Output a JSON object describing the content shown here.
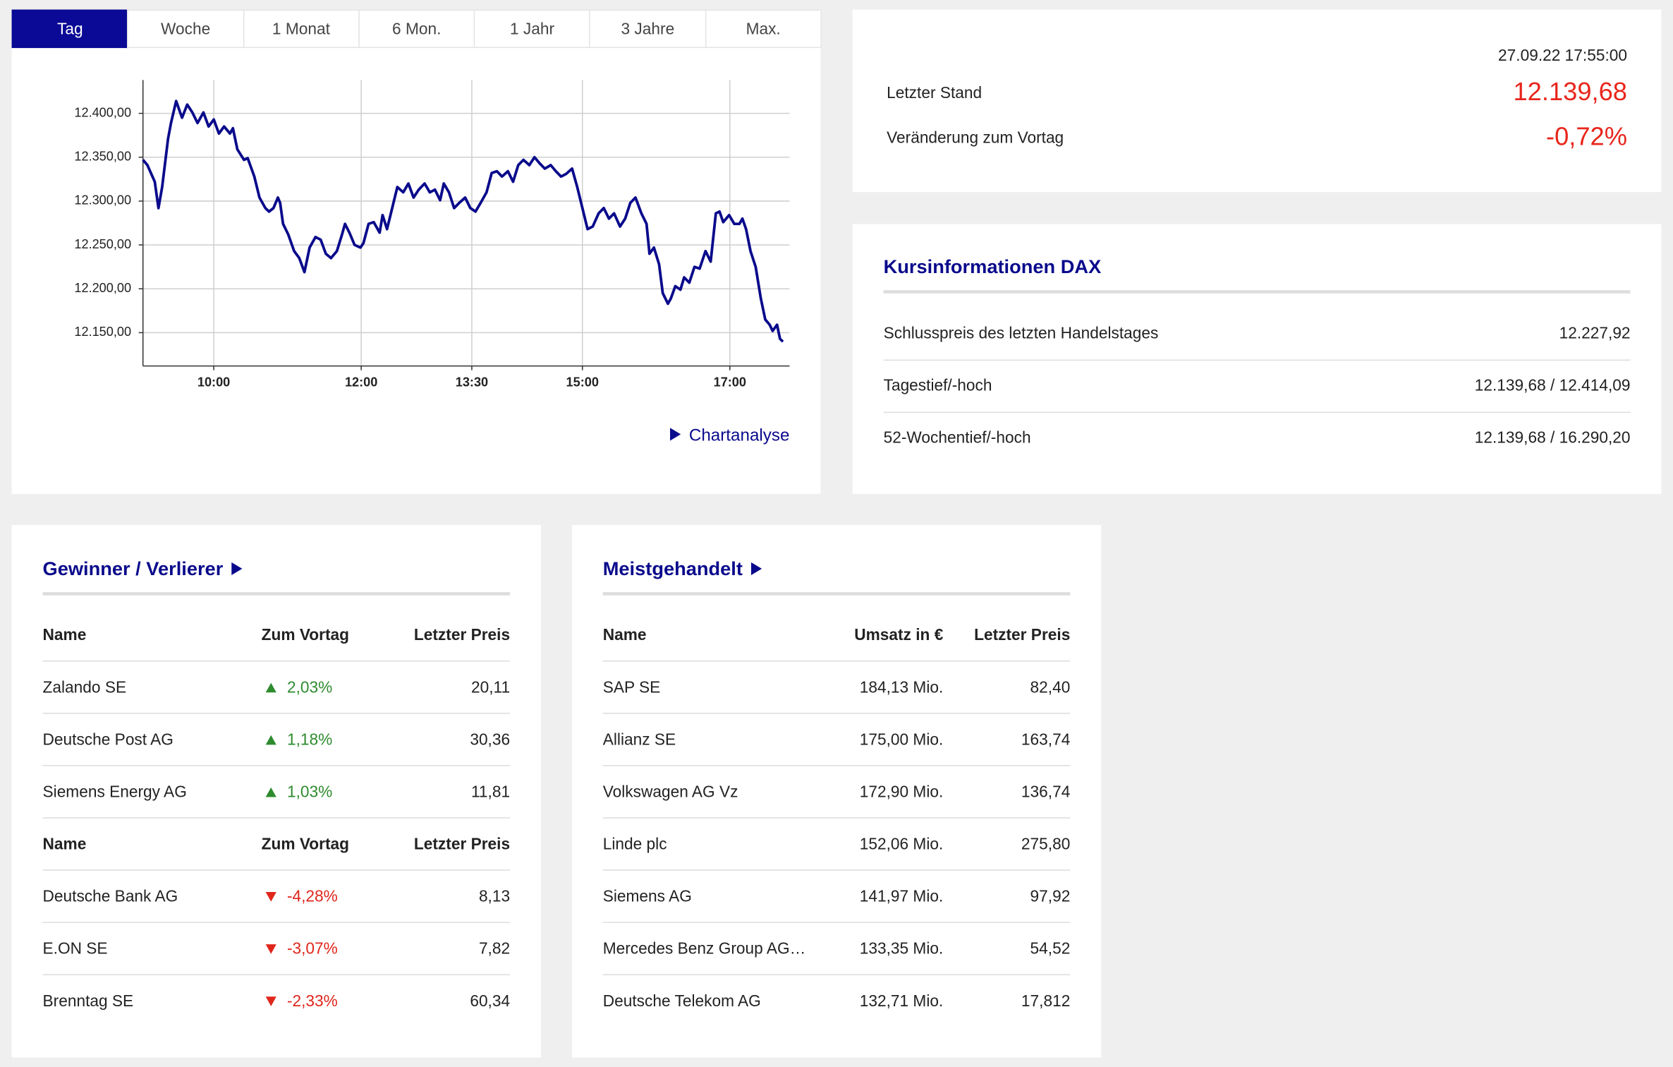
{
  "tabs": [
    "Tag",
    "Woche",
    "1 Monat",
    "6 Mon.",
    "1 Jahr",
    "3 Jahre",
    "Max."
  ],
  "chart_data": {
    "type": "line",
    "color": "#0a0a8c",
    "grid": true,
    "x": [
      9.04,
      9.1,
      9.2,
      9.25,
      9.3,
      9.38,
      9.42,
      9.49,
      9.57,
      9.64,
      9.71,
      9.78,
      9.86,
      9.93,
      10.0,
      10.07,
      10.14,
      10.22,
      10.26,
      10.32,
      10.41,
      10.46,
      10.55,
      10.62,
      10.7,
      10.75,
      10.81,
      10.87,
      10.9,
      10.94,
      11.01,
      11.09,
      11.16,
      11.23,
      11.3,
      11.38,
      11.45,
      11.52,
      11.59,
      11.67,
      11.74,
      11.78,
      11.84,
      11.91,
      11.99,
      12.03,
      12.1,
      12.17,
      12.25,
      12.29,
      12.35,
      12.42,
      12.49,
      12.57,
      12.64,
      12.71,
      12.78,
      12.86,
      12.93,
      13.0,
      13.07,
      13.12,
      13.19,
      13.26,
      13.33,
      13.41,
      13.48,
      13.55,
      13.62,
      13.7,
      13.77,
      13.84,
      13.91,
      13.99,
      14.06,
      14.13,
      14.2,
      14.28,
      14.35,
      14.42,
      14.49,
      14.57,
      14.64,
      14.71,
      14.78,
      14.86,
      14.93,
      15.0,
      15.07,
      15.14,
      15.22,
      15.29,
      15.36,
      15.43,
      15.51,
      15.58,
      15.65,
      15.72,
      15.8,
      15.87,
      15.91,
      15.97,
      16.04,
      16.09,
      16.16,
      16.2,
      16.26,
      16.33,
      16.38,
      16.45,
      16.52,
      16.59,
      16.67,
      16.74,
      16.81,
      16.86,
      16.91,
      16.99,
      17.06,
      17.13,
      17.17,
      17.22,
      17.28,
      17.35,
      17.42,
      17.48,
      17.54,
      17.58,
      17.64,
      17.68,
      17.72
    ],
    "values": [
      12347,
      12341,
      12322,
      12292,
      12316,
      12371,
      12389,
      12414,
      12395,
      12410,
      12401,
      12389,
      12401,
      12385,
      12393,
      12377,
      12385,
      12377,
      12383,
      12359,
      12347,
      12349,
      12328,
      12304,
      12292,
      12288,
      12292,
      12304,
      12298,
      12274,
      12262,
      12243,
      12235,
      12219,
      12247,
      12259,
      12256,
      12240,
      12235,
      12243,
      12262,
      12274,
      12264,
      12250,
      12247,
      12252,
      12274,
      12276,
      12264,
      12284,
      12268,
      12292,
      12316,
      12310,
      12320,
      12304,
      12313,
      12320,
      12310,
      12313,
      12301,
      12320,
      12310,
      12292,
      12298,
      12304,
      12292,
      12288,
      12298,
      12310,
      12332,
      12334,
      12328,
      12334,
      12322,
      12341,
      12347,
      12341,
      12350,
      12343,
      12337,
      12341,
      12334,
      12328,
      12331,
      12337,
      12316,
      12292,
      12268,
      12271,
      12286,
      12292,
      12280,
      12286,
      12271,
      12280,
      12298,
      12304,
      12286,
      12274,
      12240,
      12247,
      12228,
      12195,
      12183,
      12189,
      12203,
      12199,
      12213,
      12207,
      12225,
      12223,
      12243,
      12231,
      12286,
      12288,
      12276,
      12284,
      12274,
      12274,
      12280,
      12268,
      12243,
      12225,
      12189,
      12165,
      12159,
      12152,
      12159,
      12143,
      12139.68
    ],
    "xlim": [
      9.04,
      17.81
    ],
    "xticks": [
      {
        "value": 10,
        "label": "10:00"
      },
      {
        "value": 12,
        "label": "12:00"
      },
      {
        "value": 13.5,
        "label": "13:30"
      },
      {
        "value": 15,
        "label": "15:00"
      },
      {
        "value": 17,
        "label": "17:00"
      }
    ],
    "ylim": [
      12112,
      12438
    ],
    "yticks": [
      {
        "value": 12150,
        "label": "12.150,00"
      },
      {
        "value": 12200,
        "label": "12.200,00"
      },
      {
        "value": 12250,
        "label": "12.250,00"
      },
      {
        "value": 12300,
        "label": "12.300,00"
      },
      {
        "value": 12350,
        "label": "12.350,00"
      },
      {
        "value": 12400,
        "label": "12.400,00"
      }
    ]
  },
  "chart_link": "Chartanalyse",
  "quote": {
    "timestamp": "27.09.22 17:55:00",
    "rows": [
      {
        "label": "Letzter Stand",
        "value": "12.139,68"
      },
      {
        "label": "Veränderung zum Vortag",
        "value": "-0,72%"
      }
    ]
  },
  "kurs": {
    "title": "Kursinformationen DAX",
    "rows": [
      [
        "Schlusspreis des letzten Handelstages",
        "12.227,92"
      ],
      [
        "Tagestief/-hoch",
        "12.139,68 / 12.414,09"
      ],
      [
        "52-Wochentief/-hoch",
        "12.139,68 / 16.290,20"
      ]
    ]
  },
  "movers": {
    "title": "Gewinner / Verlierer",
    "gainers": {
      "header": [
        "Name",
        "Zum Vortag",
        "Letzter Preis"
      ],
      "rows": [
        [
          "Zalando SE",
          "2,03%",
          "20,11"
        ],
        [
          "Deutsche Post AG",
          "1,18%",
          "30,36"
        ],
        [
          "Siemens Energy AG",
          "1,03%",
          "11,81"
        ]
      ]
    },
    "losers": {
      "header": [
        "Name",
        "Zum Vortag",
        "Letzter Preis"
      ],
      "rows": [
        [
          "Deutsche Bank AG",
          "-4,28%",
          "8,13"
        ],
        [
          "E.ON SE",
          "-3,07%",
          "7,82"
        ],
        [
          "Brenntag SE",
          "-2,33%",
          "60,34"
        ]
      ]
    }
  },
  "most_traded": {
    "title": "Meistgehandelt",
    "header": [
      "Name",
      "Umsatz in €",
      "Letzter Preis"
    ],
    "rows": [
      [
        "SAP SE",
        "184,13 Mio.",
        "82,40"
      ],
      [
        "Allianz SE",
        "175,00 Mio.",
        "163,74"
      ],
      [
        "Volkswagen AG Vz",
        "172,90 Mio.",
        "136,74"
      ],
      [
        "Linde plc",
        "152,06 Mio.",
        "275,80"
      ],
      [
        "Siemens AG",
        "141,97 Mio.",
        "97,92"
      ],
      [
        "Mercedes Benz Group AG…",
        "133,35 Mio.",
        "54,52"
      ],
      [
        "Deutsche Telekom AG",
        "132,71 Mio.",
        "17,812"
      ]
    ]
  }
}
